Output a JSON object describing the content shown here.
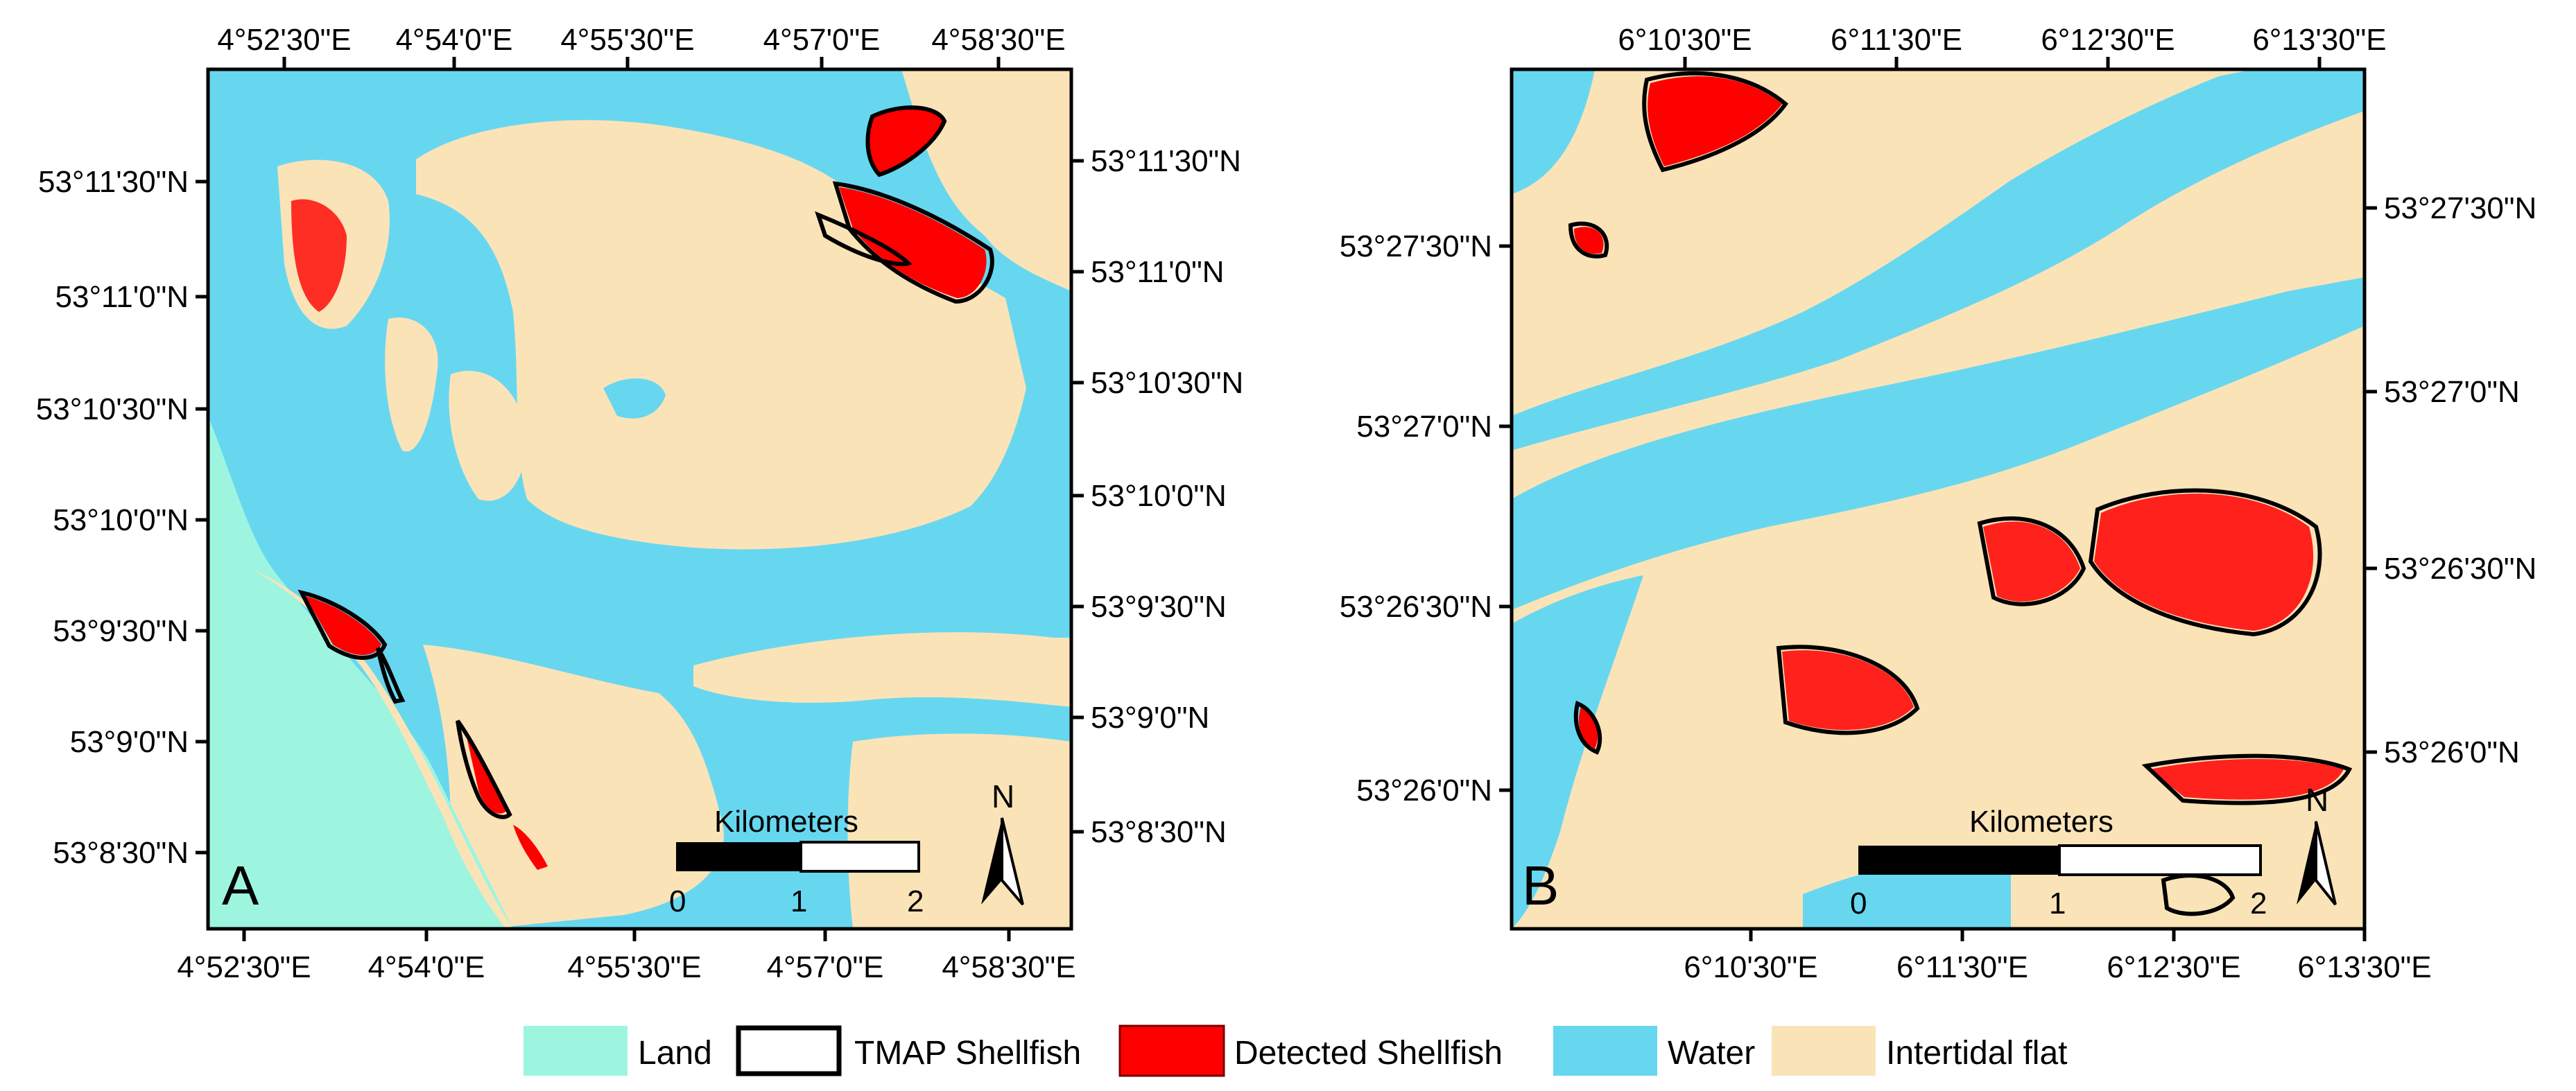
{
  "colors": {
    "land": "#9df5e0",
    "water": "#67d7f0",
    "intertidal": "#fbe3b8",
    "shellfish_detected": "#ff0000",
    "tmap_outline": "#000000"
  },
  "panel_a": {
    "letter": "A",
    "top_ticks": [
      "4°52'30\"E",
      "4°54'0\"E",
      "4°55'30\"E",
      "4°57'0\"E",
      "4°58'30\"E"
    ],
    "bottom_ticks": [
      "4°52'30\"E",
      "4°54'0\"E",
      "4°55'30\"E",
      "4°57'0\"E",
      "4°58'30\"E"
    ],
    "left_ticks": [
      "53°11'30\"N",
      "53°11'0\"N",
      "53°10'30\"N",
      "53°10'0\"N",
      "53°9'30\"N",
      "53°9'0\"N",
      "53°8'30\"N"
    ],
    "right_ticks": [
      "53°11'30\"N",
      "53°11'0\"N",
      "53°10'30\"N",
      "53°10'0\"N",
      "53°9'30\"N",
      "53°9'0\"N",
      "53°8'30\"N"
    ],
    "scalebar": {
      "title": "Kilometers",
      "labels": [
        "0",
        "1",
        "2"
      ]
    },
    "north": "N"
  },
  "panel_b": {
    "letter": "B",
    "top_ticks": [
      "6°10'30\"E",
      "6°11'30\"E",
      "6°12'30\"E",
      "6°13'30\"E"
    ],
    "bottom_ticks": [
      "6°10'30\"E",
      "6°11'30\"E",
      "6°12'30\"E",
      "6°13'30\"E"
    ],
    "left_ticks": [
      "53°27'30\"N",
      "53°27'0\"N",
      "53°26'30\"N",
      "53°26'0\"N"
    ],
    "right_ticks": [
      "53°27'30\"N",
      "53°27'0\"N",
      "53°26'30\"N",
      "53°26'0\"N"
    ],
    "scalebar": {
      "title": "Kilometers",
      "labels": [
        "0",
        "1",
        "2"
      ]
    },
    "north": "N"
  },
  "legend": [
    {
      "label": "Land",
      "kind": "land"
    },
    {
      "label": "TMAP Shellfish",
      "kind": "outline"
    },
    {
      "label": "Detected Shellfish",
      "kind": "detected"
    },
    {
      "label": "Water",
      "kind": "water"
    },
    {
      "label": "Intertidal flat",
      "kind": "intertidal"
    }
  ]
}
